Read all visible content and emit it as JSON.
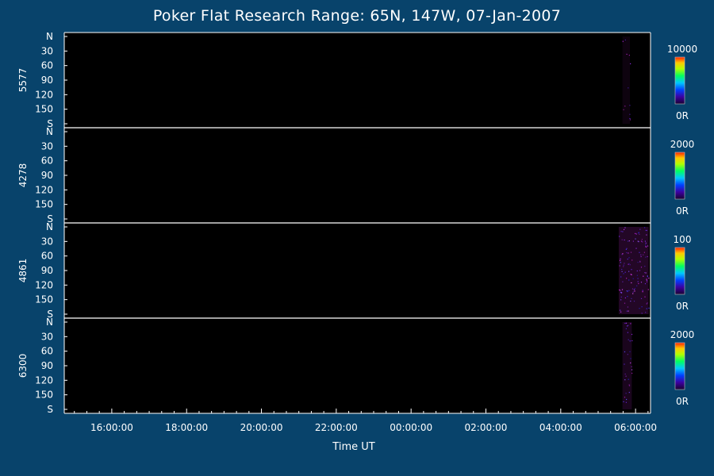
{
  "title": "Poker Flat Research Range: 65N, 147W, 07-Jan-2007",
  "colors": {
    "background": "#08436b",
    "plot_background": "#000000",
    "axis": "#ffffff",
    "text": "#ffffff",
    "faint_signal": "#3a0c40"
  },
  "chart_data": {
    "type": "heatmap",
    "title": "Poker Flat Research Range: 65N, 147W, 07-Jan-2007",
    "xlabel": "Time UT",
    "x_ticks": [
      "16:00:00",
      "18:00:00",
      "20:00:00",
      "22:00:00",
      "00:00:00",
      "02:00:00",
      "04:00:00",
      "06:00:00"
    ],
    "x_tick_hours": [
      16,
      18,
      20,
      22,
      24,
      26,
      28,
      30
    ],
    "xlim_hours": [
      14.73,
      30.4
    ],
    "y_ticks": [
      "N",
      "30",
      "60",
      "90",
      "120",
      "150",
      "S"
    ],
    "y_tick_values": [
      0,
      30,
      60,
      90,
      120,
      150,
      180
    ],
    "ylim": [
      0,
      180
    ],
    "grid": false,
    "colorbar": "rainbow",
    "panels": [
      {
        "name": "5577",
        "scale_max": "10000",
        "scale_min": "0R",
        "signal": {
          "start_hour": 29.65,
          "end_hour": 29.85,
          "level": 0.08,
          "speckle": 0.03
        }
      },
      {
        "name": "4278",
        "scale_max": "2000",
        "scale_min": "0R",
        "signal": {
          "start_hour": 29.65,
          "end_hour": 29.85,
          "level": 0.0,
          "speckle": 0.0
        }
      },
      {
        "name": "4861",
        "scale_max": "100",
        "scale_min": "0R",
        "signal": {
          "start_hour": 29.55,
          "end_hour": 30.35,
          "level": 0.2,
          "speckle": 0.35
        }
      },
      {
        "name": "6300",
        "scale_max": "2000",
        "scale_min": "0R",
        "signal": {
          "start_hour": 29.65,
          "end_hour": 29.9,
          "level": 0.15,
          "speckle": 0.08
        }
      }
    ]
  }
}
